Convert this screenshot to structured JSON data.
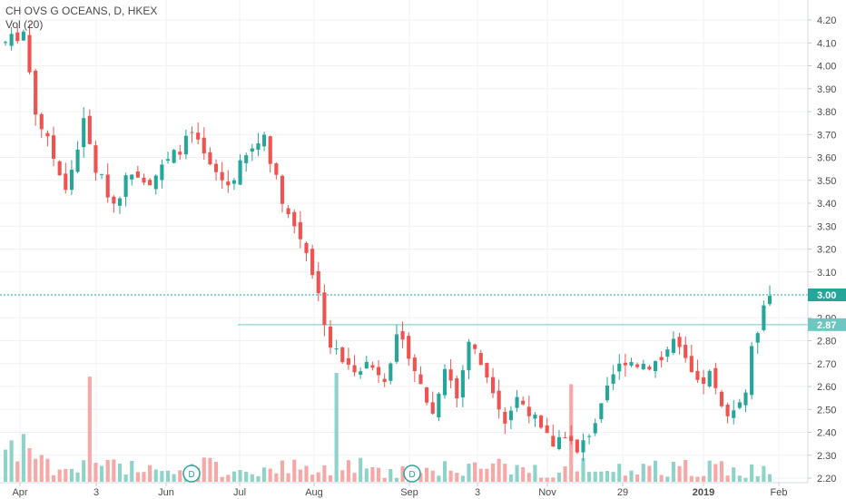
{
  "chart_data": {
    "type": "candlestick",
    "title": "CH OVS G OCEANS, D, HKEX",
    "subtitle": "Vol (20)",
    "y_axis_labels": [
      "2.20",
      "2.30",
      "2.40",
      "2.50",
      "2.60",
      "2.70",
      "2.80",
      "2.90",
      "3.00",
      "3.10",
      "3.20",
      "3.30",
      "3.40",
      "3.50",
      "3.60",
      "3.70",
      "3.80",
      "3.90",
      "4.00",
      "4.10",
      "4.20"
    ],
    "y_range": [
      2.19,
      4.23
    ],
    "x_labels": [
      "Apr",
      "3",
      "Jun",
      "Jul",
      "Aug",
      "Sep",
      "3",
      "Nov",
      "29",
      "2019",
      "Feb"
    ],
    "x_label_bold": [
      "2019"
    ],
    "price_badges": [
      {
        "label": "3.00",
        "value": 3.0,
        "color": "#26a69a",
        "line": "dashed"
      },
      {
        "label": "2.87",
        "value": 2.87,
        "color": "#6ec6c0",
        "line": "solid"
      }
    ],
    "dividend_markers": [
      "D",
      "D"
    ],
    "colors": {
      "up": "#26a69a",
      "down": "#ef5350",
      "vol_up": "#8fd3c8",
      "vol_down": "#f7a8a6",
      "grid": "#eef0f3",
      "axis_text": "#4a4a4a"
    },
    "anchors": [
      [
        0,
        4.1
      ],
      [
        3,
        4.15
      ],
      [
        5,
        3.8
      ],
      [
        8,
        3.6
      ],
      [
        10,
        3.45
      ],
      [
        13,
        3.75
      ],
      [
        15,
        3.55
      ],
      [
        18,
        3.4
      ],
      [
        21,
        3.55
      ],
      [
        24,
        3.5
      ],
      [
        27,
        3.58
      ],
      [
        31,
        3.7
      ],
      [
        34,
        3.55
      ],
      [
        37,
        3.48
      ],
      [
        40,
        3.6
      ],
      [
        43,
        3.7
      ],
      [
        45,
        3.5
      ],
      [
        47,
        3.35
      ],
      [
        50,
        3.2
      ],
      [
        52,
        3.0
      ],
      [
        54,
        2.78
      ],
      [
        57,
        2.68
      ],
      [
        60,
        2.7
      ],
      [
        63,
        2.65
      ],
      [
        65,
        2.8
      ],
      [
        67,
        2.75
      ],
      [
        69,
        2.6
      ],
      [
        71,
        2.48
      ],
      [
        73,
        2.7
      ],
      [
        75,
        2.55
      ],
      [
        77,
        2.8
      ],
      [
        79,
        2.7
      ],
      [
        81,
        2.6
      ],
      [
        83,
        2.45
      ],
      [
        85,
        2.55
      ],
      [
        87,
        2.5
      ],
      [
        89,
        2.4
      ],
      [
        91,
        2.35
      ],
      [
        93,
        2.4
      ],
      [
        95,
        2.3
      ],
      [
        97,
        2.4
      ],
      [
        99,
        2.5
      ],
      [
        101,
        2.65
      ],
      [
        103,
        2.72
      ],
      [
        105,
        2.7
      ],
      [
        107,
        2.7
      ],
      [
        109,
        2.72
      ],
      [
        111,
        2.8
      ],
      [
        113,
        2.7
      ],
      [
        115,
        2.6
      ],
      [
        117,
        2.65
      ],
      [
        119,
        2.5
      ],
      [
        121,
        2.5
      ],
      [
        123,
        2.58
      ],
      [
        124,
        2.75
      ],
      [
        125,
        2.85
      ],
      [
        126,
        2.98
      ],
      [
        127,
        3.0
      ]
    ],
    "volume_spikes": {
      "14": 2.8,
      "55": 2.9,
      "94": 2.6
    },
    "volume_max_units": 2.9
  }
}
